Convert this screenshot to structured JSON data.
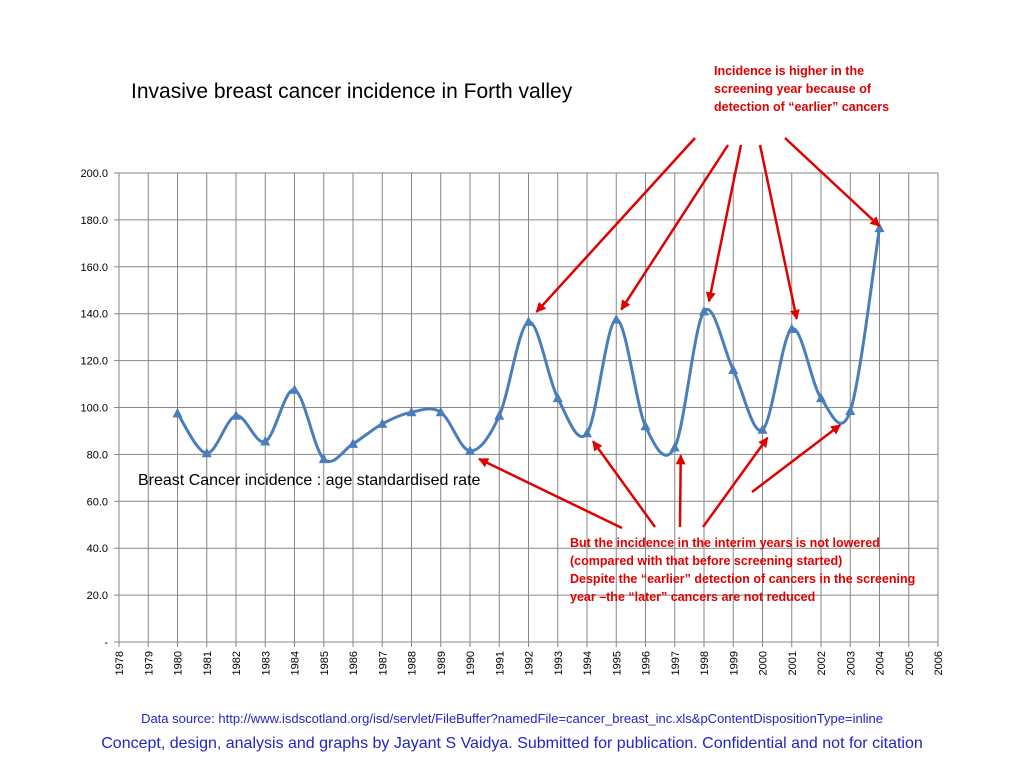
{
  "chart_data": {
    "type": "line",
    "title": "Invasive breast cancer incidence in Forth valley",
    "series_label": "Breast Cancer incidence : age standardised rate",
    "categories": [
      "1978",
      "1979",
      "1980",
      "1981",
      "1982",
      "1983",
      "1984",
      "1985",
      "1986",
      "1987",
      "1988",
      "1989",
      "1990",
      "1991",
      "1992",
      "1993",
      "1994",
      "1995",
      "1996",
      "1997",
      "1998",
      "1999",
      "2000",
      "2001",
      "2002",
      "2003",
      "2004",
      "2005",
      "2006"
    ],
    "series": [
      {
        "values": [
          null,
          null,
          97.5,
          80.5,
          96.5,
          85.5,
          107.5,
          78.0,
          84.5,
          93.0,
          98.0,
          98.0,
          81.5,
          96.5,
          136.5,
          104.0,
          89.0,
          137.5,
          92.0,
          83.0,
          141.0,
          116.0,
          90.5,
          133.5,
          104.0,
          98.5,
          176.5,
          null,
          null
        ],
        "color": "#4a7ebb"
      }
    ],
    "ylim": [
      0,
      200
    ],
    "yticks": [
      "-",
      "20.0",
      "40.0",
      "60.0",
      "80.0",
      "100.0",
      "120.0",
      "140.0",
      "160.0",
      "180.0",
      "200.0"
    ],
    "grid": true,
    "legend": "none"
  },
  "annotations": {
    "top": "Incidence is higher in the screening year because of detection of “earlier” cancers",
    "top_targets": [
      "1992",
      "1995",
      "1998",
      "2001",
      "2004"
    ],
    "bottom_line1": "But the incidence in the interim years is not lowered (compared with that before screening started)",
    "bottom_line2": "Despite the “earlier” detection of cancers in the screening year –the “later” cancers are not reduced",
    "bottom_targets": [
      "1990",
      "1994",
      "1997",
      "2000",
      "2003"
    ],
    "color": "#e00000"
  },
  "footer": {
    "source": "Data source: http://www.isdscotland.org/isd/servlet/FileBuffer?namedFile=cancer_breast_inc.xls&pContentDispositionType=inline",
    "credit": "Concept, design, analysis and graphs by Jayant S Vaidya.  Submitted for publication. Confidential and not for citation",
    "color": "#2323c8"
  }
}
